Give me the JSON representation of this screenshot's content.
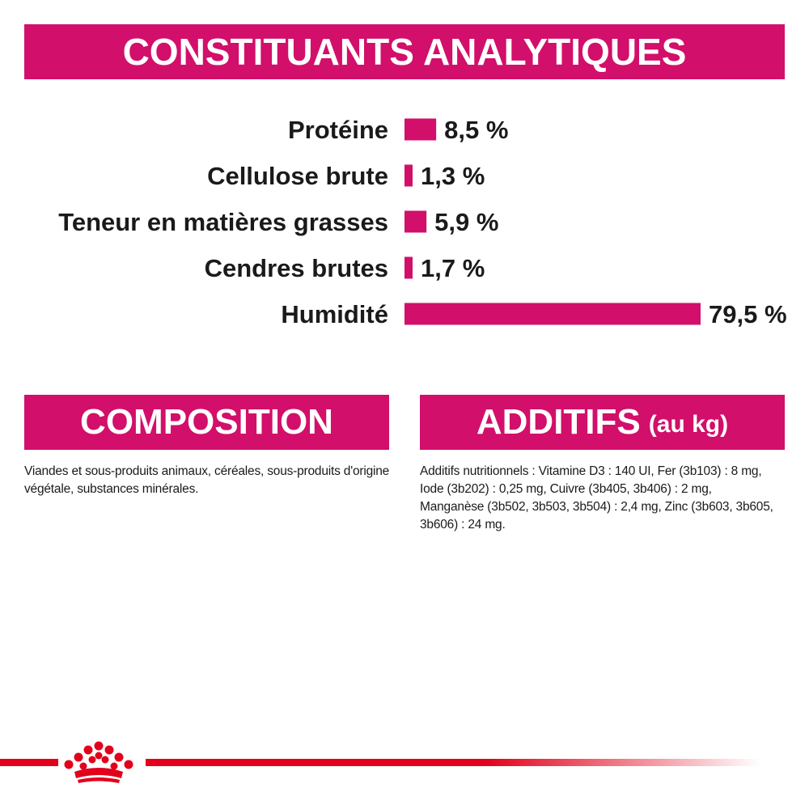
{
  "headers": {
    "analytique": "CONSTITUANTS ANALYTIQUES",
    "composition": "COMPOSITION",
    "additifs": "ADDITIFS",
    "additifs_suffix": "(au kg)"
  },
  "chart_data": {
    "type": "bar",
    "orientation": "horizontal",
    "categories": [
      "Protéine",
      "Cellulose brute",
      "Teneur en matières grasses",
      "Cendres brutes",
      "Humidité"
    ],
    "values": [
      8.5,
      1.3,
      5.9,
      1.7,
      79.5
    ],
    "value_labels": [
      "8,5 %",
      "1,3 %",
      "5,9 %",
      "1,7 %",
      "79,5 %"
    ],
    "unit": "%",
    "xlim": [
      0,
      79.5
    ],
    "bar_color": "#d20f6a",
    "grid": false
  },
  "composition_text": "Viandes et sous-produits animaux, céréales, sous-produits d'origine végétale, substances minérales.",
  "additifs_text": "Additifs nutritionnels : Vitamine D3 : 140 UI, Fer (3b103) : 8 mg, Iode (3b202) : 0,25 mg, Cuivre (3b405, 3b406) : 2 mg, Manganèse (3b502, 3b503, 3b504) : 2,4 mg, Zinc (3b603, 3b605, 3b606) : 24 mg.",
  "colors": {
    "banner": "#d20f6a",
    "footer_line": "#e2001a",
    "logo": "#e2001a"
  },
  "logo": {
    "icon": "crown-icon"
  }
}
